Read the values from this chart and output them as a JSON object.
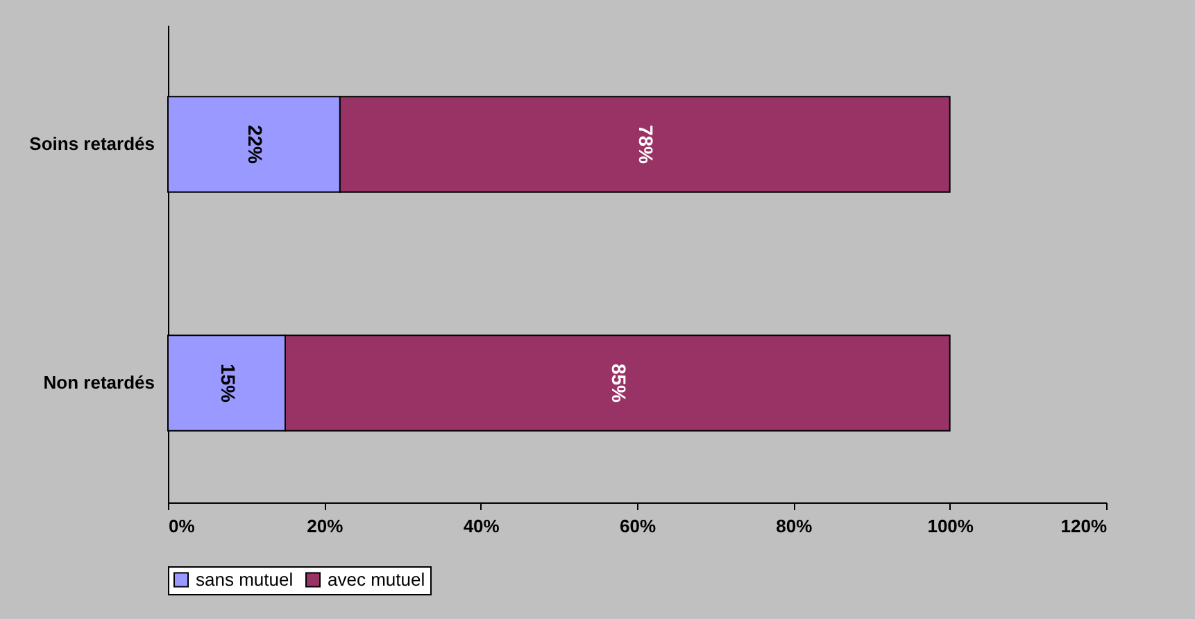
{
  "chart_data": {
    "type": "bar",
    "orientation": "horizontal",
    "stacked": true,
    "categories": [
      "Soins retardés",
      "Non retardés"
    ],
    "series": [
      {
        "name": "sans mutuel",
        "color": "#9999ff",
        "values": [
          22,
          15
        ],
        "value_labels": [
          "22%",
          "15%"
        ]
      },
      {
        "name": "avec mutuel",
        "color": "#993366",
        "values": [
          78,
          85
        ],
        "value_labels": [
          "78%",
          "85%"
        ]
      }
    ],
    "xlim": [
      0,
      120
    ],
    "xticks": [
      {
        "value": 0,
        "label": "0%"
      },
      {
        "value": 20,
        "label": "20%"
      },
      {
        "value": 40,
        "label": "40%"
      },
      {
        "value": 60,
        "label": "60%"
      },
      {
        "value": 80,
        "label": "80%"
      },
      {
        "value": 100,
        "label": "100%"
      },
      {
        "value": 120,
        "label": "120%"
      }
    ],
    "legend": "bottom"
  }
}
